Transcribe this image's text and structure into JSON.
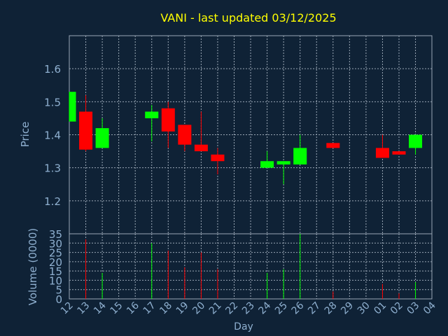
{
  "chart_data": {
    "type": "candlestick",
    "title": "VANI - last updated 03/12/2025",
    "xlabel": "Day",
    "price_ylabel": "Price",
    "volume_ylabel": "Volume (0000)",
    "x_tick_labels": [
      "12",
      "13",
      "14",
      "15",
      "16",
      "17",
      "18",
      "19",
      "20",
      "21",
      "22",
      "23",
      "24",
      "25",
      "26",
      "27",
      "28",
      "29",
      "30",
      "01",
      "02",
      "03",
      "04"
    ],
    "price_yticks": [
      1.2,
      1.3,
      1.4,
      1.5,
      1.6
    ],
    "price_ylim": [
      1.1,
      1.7
    ],
    "volume_yticks": [
      0,
      5,
      10,
      15,
      20,
      25,
      30,
      35
    ],
    "volume_ylim": [
      0,
      35
    ],
    "grid": true,
    "colors": {
      "background": "#0f2236",
      "plot_background": "#0f2236",
      "grid": "#9aa7b5",
      "title": "#ffff00",
      "label": "#8fb0d0",
      "up": "#00ff00",
      "down": "#ff0000"
    },
    "candles": [
      {
        "day": "12",
        "open": 1.44,
        "high": 1.53,
        "low": 1.44,
        "close": 1.53,
        "volume": 0
      },
      {
        "day": "13",
        "open": 1.47,
        "high": 1.52,
        "low": 1.35,
        "close": 1.355,
        "volume": 32
      },
      {
        "day": "14",
        "open": 1.36,
        "high": 1.45,
        "low": 1.36,
        "close": 1.42,
        "volume": 14
      },
      {
        "day": "17",
        "open": 1.45,
        "high": 1.49,
        "low": 1.38,
        "close": 1.47,
        "volume": 30
      },
      {
        "day": "18",
        "open": 1.48,
        "high": 1.5,
        "low": 1.36,
        "close": 1.41,
        "volume": 26
      },
      {
        "day": "19",
        "open": 1.43,
        "high": 1.43,
        "low": 1.35,
        "close": 1.37,
        "volume": 17
      },
      {
        "day": "20",
        "open": 1.37,
        "high": 1.47,
        "low": 1.35,
        "close": 1.35,
        "volume": 25
      },
      {
        "day": "21",
        "open": 1.34,
        "high": 1.36,
        "low": 1.28,
        "close": 1.32,
        "volume": 16
      },
      {
        "day": "24",
        "open": 1.3,
        "high": 1.35,
        "low": 1.3,
        "close": 1.32,
        "volume": 14
      },
      {
        "day": "25",
        "open": 1.31,
        "high": 1.32,
        "low": 1.25,
        "close": 1.32,
        "volume": 16
      },
      {
        "day": "26",
        "open": 1.31,
        "high": 1.4,
        "low": 1.31,
        "close": 1.36,
        "volume": 35
      },
      {
        "day": "28",
        "open": 1.375,
        "high": 1.375,
        "low": 1.36,
        "close": 1.36,
        "volume": 4
      },
      {
        "day": "01",
        "open": 1.36,
        "high": 1.4,
        "low": 1.33,
        "close": 1.33,
        "volume": 8
      },
      {
        "day": "02",
        "open": 1.35,
        "high": 1.35,
        "low": 1.34,
        "close": 1.34,
        "volume": 3
      },
      {
        "day": "03",
        "open": 1.36,
        "high": 1.4,
        "low": 1.34,
        "close": 1.4,
        "volume": 9
      }
    ]
  }
}
